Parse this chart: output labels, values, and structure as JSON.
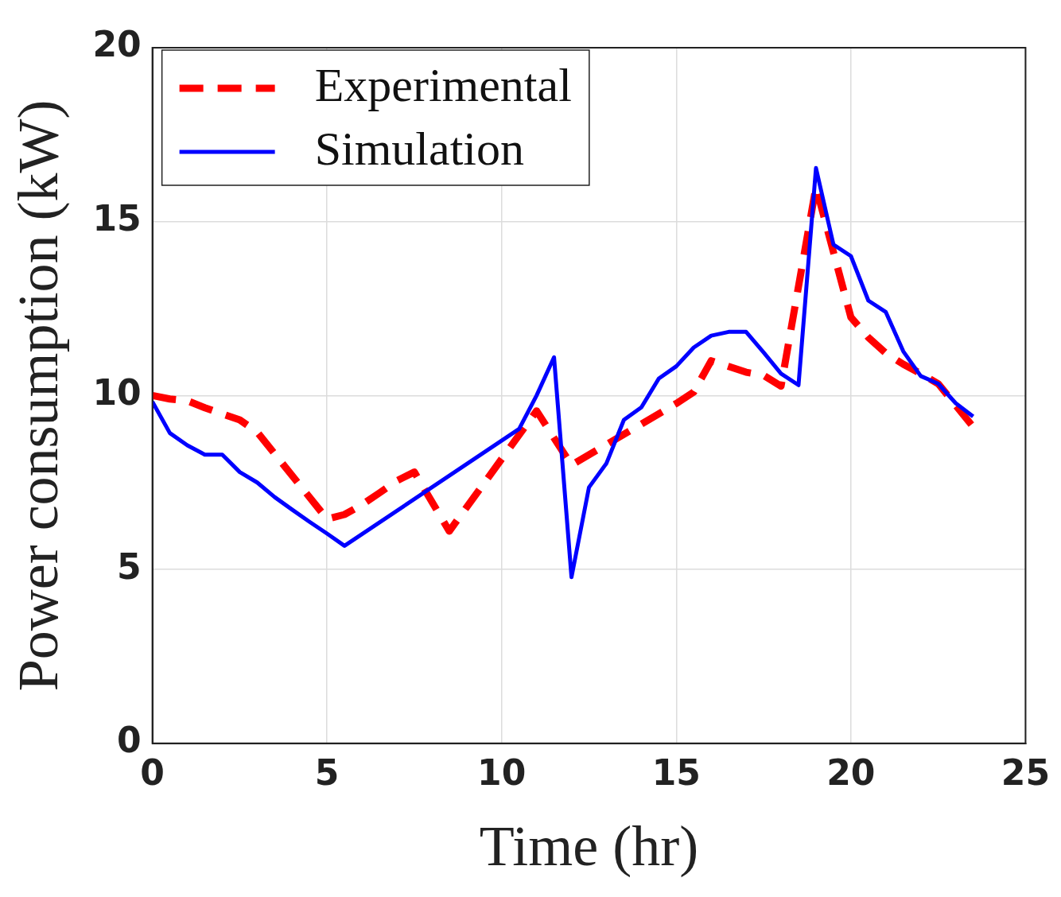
{
  "chart_data": {
    "type": "line",
    "xlabel": "Time (hr)",
    "ylabel": "Power consumption (kW)",
    "xlim": [
      0,
      25
    ],
    "xticks": [
      0,
      5,
      10,
      15,
      20,
      25
    ],
    "ylim": [
      0,
      20
    ],
    "yticks": [
      0,
      5,
      10,
      15,
      20
    ],
    "grid": true,
    "legend": "top left",
    "marker": "none",
    "series": [
      {
        "name": "Experimental",
        "color": "#ff0000",
        "line_style": "dashed",
        "x": [
          0,
          0.5,
          1,
          1.5,
          2,
          2.5,
          3,
          5,
          5.5,
          6,
          6.5,
          7,
          7.5,
          8.5,
          11,
          12,
          15,
          15.5,
          16,
          17,
          17.5,
          18,
          19,
          20,
          20.5,
          21,
          21.5,
          22,
          22.5,
          23.5
        ],
        "values": [
          10.0,
          9.9,
          9.85,
          9.65,
          9.47,
          9.3,
          8.95,
          6.45,
          6.58,
          6.86,
          7.2,
          7.55,
          7.8,
          6.1,
          9.56,
          8.0,
          9.77,
          10.1,
          11.0,
          10.67,
          10.58,
          10.27,
          16.0,
          12.25,
          11.67,
          11.22,
          10.9,
          10.63,
          10.34,
          9.1
        ]
      },
      {
        "name": "Simulation",
        "color": "#0000ff",
        "line_style": "solid",
        "x": [
          0,
          0.5,
          1,
          1.5,
          2,
          2.5,
          3,
          3.5,
          4,
          4.5,
          5,
          5.5,
          10.5,
          11,
          11.5,
          12,
          12.5,
          13,
          13.5,
          14,
          14.5,
          15,
          15.5,
          16,
          16.5,
          17,
          17.5,
          18,
          18.5,
          19,
          19.5,
          20,
          20.5,
          21,
          21.5,
          22,
          22.5,
          23,
          23.5
        ],
        "values": [
          9.82,
          8.92,
          8.57,
          8.3,
          8.3,
          7.8,
          7.5,
          7.08,
          6.72,
          6.37,
          6.03,
          5.68,
          9.04,
          10.0,
          11.1,
          4.78,
          7.36,
          8.05,
          9.3,
          9.66,
          10.49,
          10.84,
          11.38,
          11.72,
          11.83,
          11.83,
          11.24,
          10.63,
          10.3,
          16.54,
          14.34,
          14.01,
          12.73,
          12.4,
          11.27,
          10.56,
          10.34,
          9.78,
          9.4
        ]
      }
    ]
  }
}
